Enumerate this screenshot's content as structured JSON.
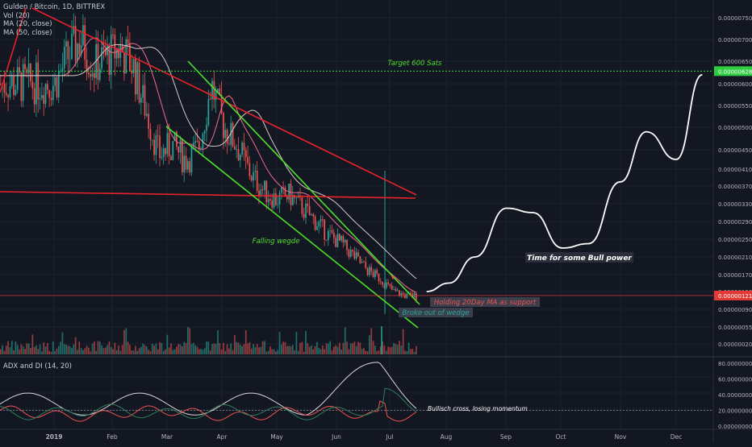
{
  "legend": {
    "symbol": "Gulden / Bitcoin, 1D, BITTREX",
    "vol": "Vol (20)",
    "ma20": "MA (20, close)",
    "ma50": "MA (50, close)"
  },
  "adx_legend": "ADX and DI (14, 20)",
  "colors": {
    "background": "#131722",
    "grid": "#1e2230",
    "up": "#26a69a",
    "down": "#ef5350",
    "trend_red": "#e5232a",
    "trend_green": "#4ce02a",
    "target_line": "#2ecc40",
    "projection": "#ffffff",
    "price_badge": "#e53935"
  },
  "chart_data": [
    {
      "type": "line",
      "name": "price-panel",
      "y_scale": "log",
      "ylim": [
        2e-07,
        8e-07
      ],
      "x_ticks": [
        "2019",
        "Feb",
        "Mar",
        "Apr",
        "May",
        "Jun",
        "Jul",
        "Aug",
        "Sep",
        "Oct",
        "Nov",
        "Dec"
      ],
      "y_ticks": [
        "0.00000750",
        "0.00000700",
        "0.00000650",
        "0.00000600",
        "0.00000550",
        "0.00000500",
        "0.00000450",
        "0.00000410",
        "0.00000370",
        "0.00000330",
        "0.00000290",
        "0.00000250",
        "0.00000210",
        "0.00000170",
        "0.00000130",
        "0.00000090",
        "0.00000055",
        "0.00000020"
      ],
      "current_price": "0.00000121",
      "target_price": "0.00000628",
      "series": [
        {
          "kind": "candles_close",
          "x": [
            "2019-01-01",
            "2019-01-08",
            "2019-01-15",
            "2019-01-22",
            "2019-01-29",
            "2019-02-05",
            "2019-02-12",
            "2019-02-19",
            "2019-02-26",
            "2019-03-05",
            "2019-03-12",
            "2019-03-19",
            "2019-03-26",
            "2019-04-02",
            "2019-04-09",
            "2019-04-16",
            "2019-04-23",
            "2019-04-30",
            "2019-05-07",
            "2019-05-14",
            "2019-05-21",
            "2019-05-28",
            "2019-06-04",
            "2019-06-11",
            "2019-06-18",
            "2019-06-25",
            "2019-07-02",
            "2019-07-09",
            "2019-07-15"
          ],
          "values": [
            6e-06,
            6.6e-06,
            7e-06,
            6.4e-06,
            6.6e-06,
            6.8e-06,
            6.4e-06,
            5.4e-06,
            4.4e-06,
            4.6e-06,
            4.3e-06,
            4.5e-06,
            6e-06,
            5e-06,
            4.6e-06,
            4e-06,
            3.6e-06,
            3.4e-06,
            3.5e-06,
            3.2e-06,
            2.9e-06,
            2.6e-06,
            2.4e-06,
            2.1e-06,
            1.8e-06,
            1.6e-06,
            1.3e-06,
            1.2e-06,
            1.2e-06
          ]
        },
        {
          "name": "Time for some Bull power",
          "kind": "projection",
          "x": [
            "2019-07-20",
            "2019-08-01",
            "2019-08-15",
            "2019-09-01",
            "2019-09-15",
            "2019-10-01",
            "2019-10-15",
            "2019-11-01",
            "2019-11-15",
            "2019-12-01",
            "2019-12-15"
          ],
          "values": [
            1.3e-06,
            1.5e-06,
            2.1e-06,
            3.2e-06,
            3.1e-06,
            2.3e-06,
            2.4e-06,
            3.8e-06,
            4.9e-06,
            4.3e-06,
            6.2e-06
          ]
        }
      ],
      "annotations": [
        {
          "text": "Target 600 Sats",
          "color": "#4ce02a"
        },
        {
          "text": "Falling wegde",
          "color": "#4ce02a"
        },
        {
          "text": "Time for some Bull power",
          "color": "#ffffff"
        },
        {
          "text": "Holding 20Day MA as support",
          "color": "#ef5350"
        },
        {
          "text": "Broke out of wedge",
          "color": "#26a69a"
        }
      ]
    },
    {
      "type": "line",
      "name": "adx-panel",
      "title": "ADX and DI (14, 20)",
      "ylim": [
        0,
        80
      ],
      "y_ticks": [
        "80.00000000",
        "60.00000000",
        "40.00000000",
        "20.00000000",
        "0.00000000"
      ],
      "annotations": [
        {
          "text": "Bullisch cross, losing momentum",
          "color": "#ffffff"
        }
      ]
    }
  ]
}
